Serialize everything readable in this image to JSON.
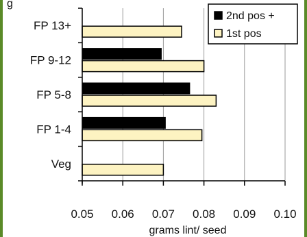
{
  "chart_data": {
    "type": "bar",
    "orientation": "horizontal",
    "categories": [
      "FP 13+",
      "FP 9-12",
      "FP 5-8",
      "FP 1-4",
      "Veg"
    ],
    "series": [
      {
        "name": "2nd pos +",
        "values": [
          null,
          0.0695,
          0.0765,
          0.0705,
          null
        ],
        "color": "#000000"
      },
      {
        "name": "1st pos",
        "values": [
          0.0745,
          0.08,
          0.083,
          0.0795,
          0.07
        ],
        "color": "#fdf3c2"
      }
    ],
    "xlabel": "grams lint/ seed",
    "xlim": [
      0.05,
      0.1
    ],
    "xticks": [
      "0.05",
      "0.06",
      "0.07",
      "0.08",
      "0.09",
      "0.10"
    ],
    "grid": true,
    "legend_position": "top-right",
    "corner_text": "g"
  }
}
